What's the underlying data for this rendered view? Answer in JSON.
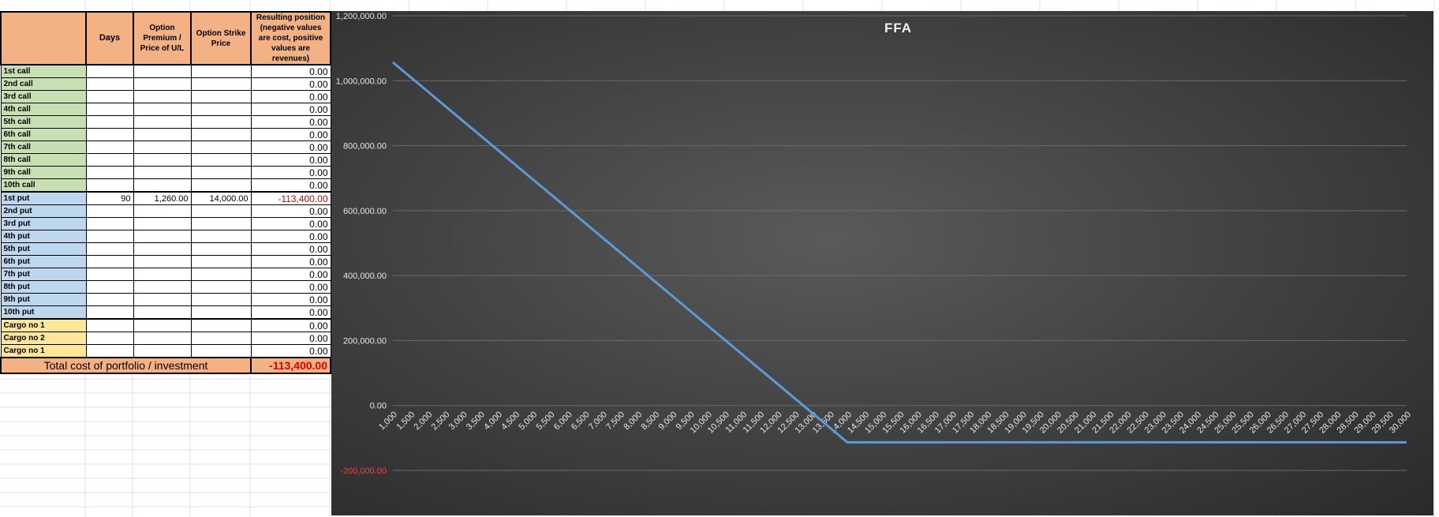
{
  "table": {
    "headers": {
      "days": "Days",
      "premium": "Option Premium / Price of U/L",
      "strike": "Option Strike Price",
      "result": "Resulting position (negative values are cost, positive values are revenues)"
    },
    "rows": [
      {
        "label": "1st call",
        "group": "call",
        "days": "",
        "premium": "",
        "strike": "",
        "result": "0.00"
      },
      {
        "label": "2nd call",
        "group": "call",
        "days": "",
        "premium": "",
        "strike": "",
        "result": "0.00"
      },
      {
        "label": "3rd call",
        "group": "call",
        "days": "",
        "premium": "",
        "strike": "",
        "result": "0.00"
      },
      {
        "label": "4th call",
        "group": "call",
        "days": "",
        "premium": "",
        "strike": "",
        "result": "0.00"
      },
      {
        "label": "5th call",
        "group": "call",
        "days": "",
        "premium": "",
        "strike": "",
        "result": "0.00"
      },
      {
        "label": "6th call",
        "group": "call",
        "days": "",
        "premium": "",
        "strike": "",
        "result": "0.00"
      },
      {
        "label": "7th call",
        "group": "call",
        "days": "",
        "premium": "",
        "strike": "",
        "result": "0.00"
      },
      {
        "label": "8th call",
        "group": "call",
        "days": "",
        "premium": "",
        "strike": "",
        "result": "0.00"
      },
      {
        "label": "9th call",
        "group": "call",
        "days": "",
        "premium": "",
        "strike": "",
        "result": "0.00"
      },
      {
        "label": "10th call",
        "group": "call",
        "days": "",
        "premium": "",
        "strike": "",
        "result": "0.00"
      },
      {
        "label": "1st put",
        "group": "put",
        "days": "90",
        "premium": "1,260.00",
        "strike": "14,000.00",
        "result": "-113,400.00"
      },
      {
        "label": "2nd put",
        "group": "put",
        "days": "",
        "premium": "",
        "strike": "",
        "result": "0.00"
      },
      {
        "label": "3rd put",
        "group": "put",
        "days": "",
        "premium": "",
        "strike": "",
        "result": "0.00"
      },
      {
        "label": "4th put",
        "group": "put",
        "days": "",
        "premium": "",
        "strike": "",
        "result": "0.00"
      },
      {
        "label": "5th put",
        "group": "put",
        "days": "",
        "premium": "",
        "strike": "",
        "result": "0.00"
      },
      {
        "label": "6th put",
        "group": "put",
        "days": "",
        "premium": "",
        "strike": "",
        "result": "0.00"
      },
      {
        "label": "7th put",
        "group": "put",
        "days": "",
        "premium": "",
        "strike": "",
        "result": "0.00"
      },
      {
        "label": "8th put",
        "group": "put",
        "days": "",
        "premium": "",
        "strike": "",
        "result": "0.00"
      },
      {
        "label": "9th put",
        "group": "put",
        "days": "",
        "premium": "",
        "strike": "",
        "result": "0.00"
      },
      {
        "label": "10th put",
        "group": "put",
        "days": "",
        "premium": "",
        "strike": "",
        "result": "0.00"
      },
      {
        "label": "Cargo no 1",
        "group": "cargo",
        "days": "",
        "premium": "",
        "strike": "",
        "result": "0.00"
      },
      {
        "label": "Cargo no 2",
        "group": "cargo",
        "days": "",
        "premium": "",
        "strike": "",
        "result": "0.00"
      },
      {
        "label": "Cargo no 1",
        "group": "cargo",
        "days": "",
        "premium": "",
        "strike": "",
        "result": "0.00"
      }
    ],
    "total_label": "Total cost of portfolio / investment",
    "total_value": "-113,400.00"
  },
  "colors": {
    "header_fill": "#f4b183",
    "call_fill": "#c6e0b4",
    "put_fill": "#bdd7ee",
    "cargo_fill": "#ffe699",
    "line": "#5b9bd5",
    "negative_text": "#e00000"
  },
  "chart_data": {
    "type": "line",
    "title": "FFA",
    "xlabel": "",
    "ylabel": "",
    "ylim": [
      -200000,
      1200000
    ],
    "yticks": [
      1200000,
      1000000,
      800000,
      600000,
      400000,
      200000,
      0,
      -200000
    ],
    "ytick_labels": [
      "1,200,000.00",
      "1,000,000.00",
      "800,000.00",
      "600,000.00",
      "400,000.00",
      "200,000.00",
      "0.00",
      "-200,000.00"
    ],
    "x": [
      1000,
      1500,
      2000,
      2500,
      3000,
      3500,
      4000,
      4500,
      5000,
      5500,
      6000,
      6500,
      7000,
      7500,
      8000,
      8500,
      9000,
      9500,
      10000,
      10500,
      11000,
      11500,
      12000,
      12500,
      13000,
      13500,
      14000,
      14500,
      15000,
      15500,
      16000,
      16500,
      17000,
      17500,
      18000,
      18500,
      19000,
      19500,
      20000,
      20500,
      21000,
      21500,
      22000,
      22500,
      23000,
      23500,
      24000,
      24500,
      25000,
      25500,
      26000,
      26500,
      27000,
      27500,
      28000,
      28500,
      29000,
      29500,
      30000
    ],
    "x_labels": [
      "1,000",
      "1,500",
      "2,000",
      "2,500",
      "3,000",
      "3,500",
      "4,000",
      "4,500",
      "5,000",
      "5,500",
      "6,000",
      "6,500",
      "7,000",
      "7,500",
      "8,000",
      "8,500",
      "9,000",
      "9,500",
      "10,000",
      "10,500",
      "11,000",
      "11,500",
      "12,000",
      "12,500",
      "13,000",
      "13,500",
      "14,000",
      "14,500",
      "15,000",
      "15,500",
      "16,000",
      "16,500",
      "17,000",
      "17,500",
      "18,000",
      "18,500",
      "19,000",
      "19,500",
      "20,000",
      "20,500",
      "21,000",
      "21,500",
      "22,000",
      "22,500",
      "23,000",
      "23,500",
      "24,000",
      "24,500",
      "25,000",
      "25,500",
      "26,000",
      "26,500",
      "27,000",
      "27,500",
      "28,000",
      "28,500",
      "29,000",
      "29,500",
      "30,000"
    ],
    "series": [
      {
        "values": [
          1056600,
          1011600,
          966600,
          921600,
          876600,
          831600,
          786600,
          741600,
          696600,
          651600,
          606600,
          561600,
          516600,
          471600,
          426600,
          381600,
          336600,
          291600,
          246600,
          201600,
          156600,
          111600,
          66600,
          21600,
          -23400,
          -68400,
          -113400,
          -113400,
          -113400,
          -113400,
          -113400,
          -113400,
          -113400,
          -113400,
          -113400,
          -113400,
          -113400,
          -113400,
          -113400,
          -113400,
          -113400,
          -113400,
          -113400,
          -113400,
          -113400,
          -113400,
          -113400,
          -113400,
          -113400,
          -113400,
          -113400,
          -113400,
          -113400,
          -113400,
          -113400,
          -113400,
          -113400,
          -113400,
          -113400
        ]
      }
    ],
    "grid": true,
    "legend": "none"
  }
}
